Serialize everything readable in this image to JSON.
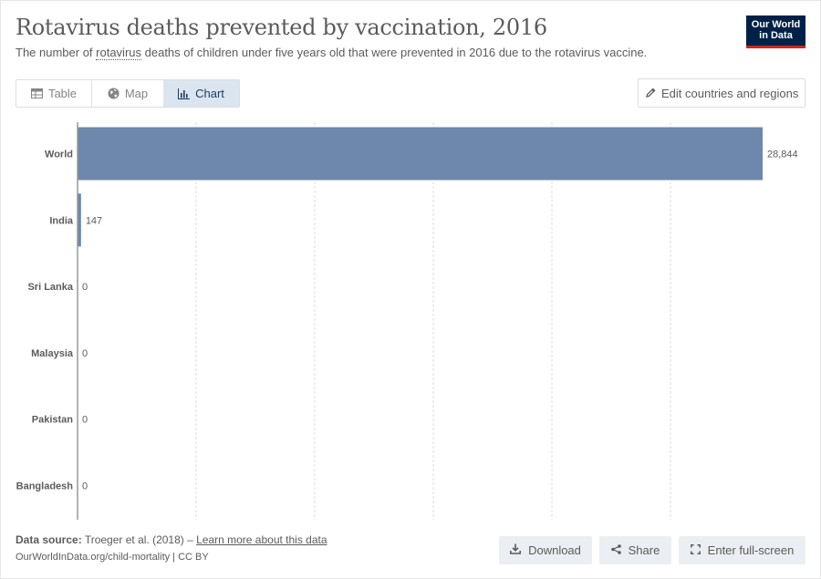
{
  "header": {
    "title": "Rotavirus deaths prevented by vaccination, 2016",
    "subtitle_prefix": "The number of ",
    "subtitle_term": "rotavirus",
    "subtitle_suffix": " deaths of children under five years old that were prevented in 2016 due to the rotavirus vaccine.",
    "logo_line1": "Our World",
    "logo_line2": "in Data"
  },
  "tabs": [
    {
      "label": "Table",
      "icon": "table-icon"
    },
    {
      "label": "Map",
      "icon": "globe-icon"
    },
    {
      "label": "Chart",
      "icon": "bar-chart-icon",
      "active": true
    }
  ],
  "edit_button": {
    "label": "Edit countries and regions",
    "icon": "pencil-icon"
  },
  "chart_data": {
    "type": "bar",
    "orientation": "horizontal",
    "categories": [
      "World",
      "India",
      "Sri Lanka",
      "Malaysia",
      "Pakistan",
      "Bangladesh"
    ],
    "values": [
      28844,
      147,
      0,
      0,
      0,
      0
    ],
    "value_labels": [
      "28,844",
      "147",
      "0",
      "0",
      "0",
      "0"
    ],
    "xlim": [
      0,
      28844
    ],
    "grid": true,
    "bar_color": "#6d87ad"
  },
  "footer": {
    "source_label": "Data source:",
    "source_text": " Troeger et al. (2018) – ",
    "learn_more": "Learn more about this data",
    "url_text": "OurWorldInData.org/child-mortality | CC BY"
  },
  "actions": {
    "download": "Download",
    "share": "Share",
    "fullscreen": "Enter full-screen"
  }
}
